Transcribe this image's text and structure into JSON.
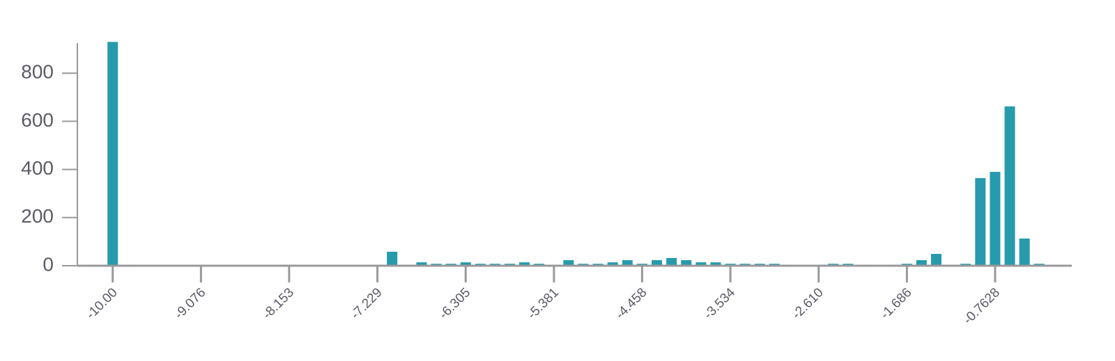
{
  "chart_data": {
    "type": "bar",
    "x": [
      -10.0,
      -7.075,
      -6.767,
      -6.613,
      -6.459,
      -6.305,
      -6.151,
      -5.998,
      -5.844,
      -5.69,
      -5.536,
      -5.228,
      -5.074,
      -4.92,
      -4.766,
      -4.612,
      -4.458,
      -4.304,
      -4.15,
      -3.996,
      -3.842,
      -3.688,
      -3.534,
      -3.38,
      -3.227,
      -3.073,
      -2.457,
      -2.303,
      -1.687,
      -1.533,
      -1.379,
      -1.071,
      -0.917,
      -0.763,
      -0.609,
      -0.455,
      -0.301
    ],
    "values": [
      930,
      58,
      14,
      8,
      8,
      14,
      8,
      8,
      8,
      14,
      8,
      23,
      8,
      8,
      14,
      23,
      8,
      23,
      32,
      23,
      14,
      14,
      8,
      8,
      8,
      8,
      8,
      8,
      8,
      23,
      49,
      8,
      364,
      390,
      662,
      113,
      8
    ],
    "color": "#279aac",
    "xlim": [
      -10.37,
      0.04
    ],
    "xticks": [
      {
        "value": -10,
        "label": "-10.00"
      },
      -9.076,
      -8.153,
      -7.229,
      -6.305,
      -5.381,
      -4.458,
      -3.534,
      {
        "value": -2.61,
        "label": "-2.610"
      },
      -1.686,
      -0.7628
    ],
    "ylim": [
      0,
      925
    ],
    "yticks": [
      0,
      200,
      400,
      600,
      800
    ]
  }
}
